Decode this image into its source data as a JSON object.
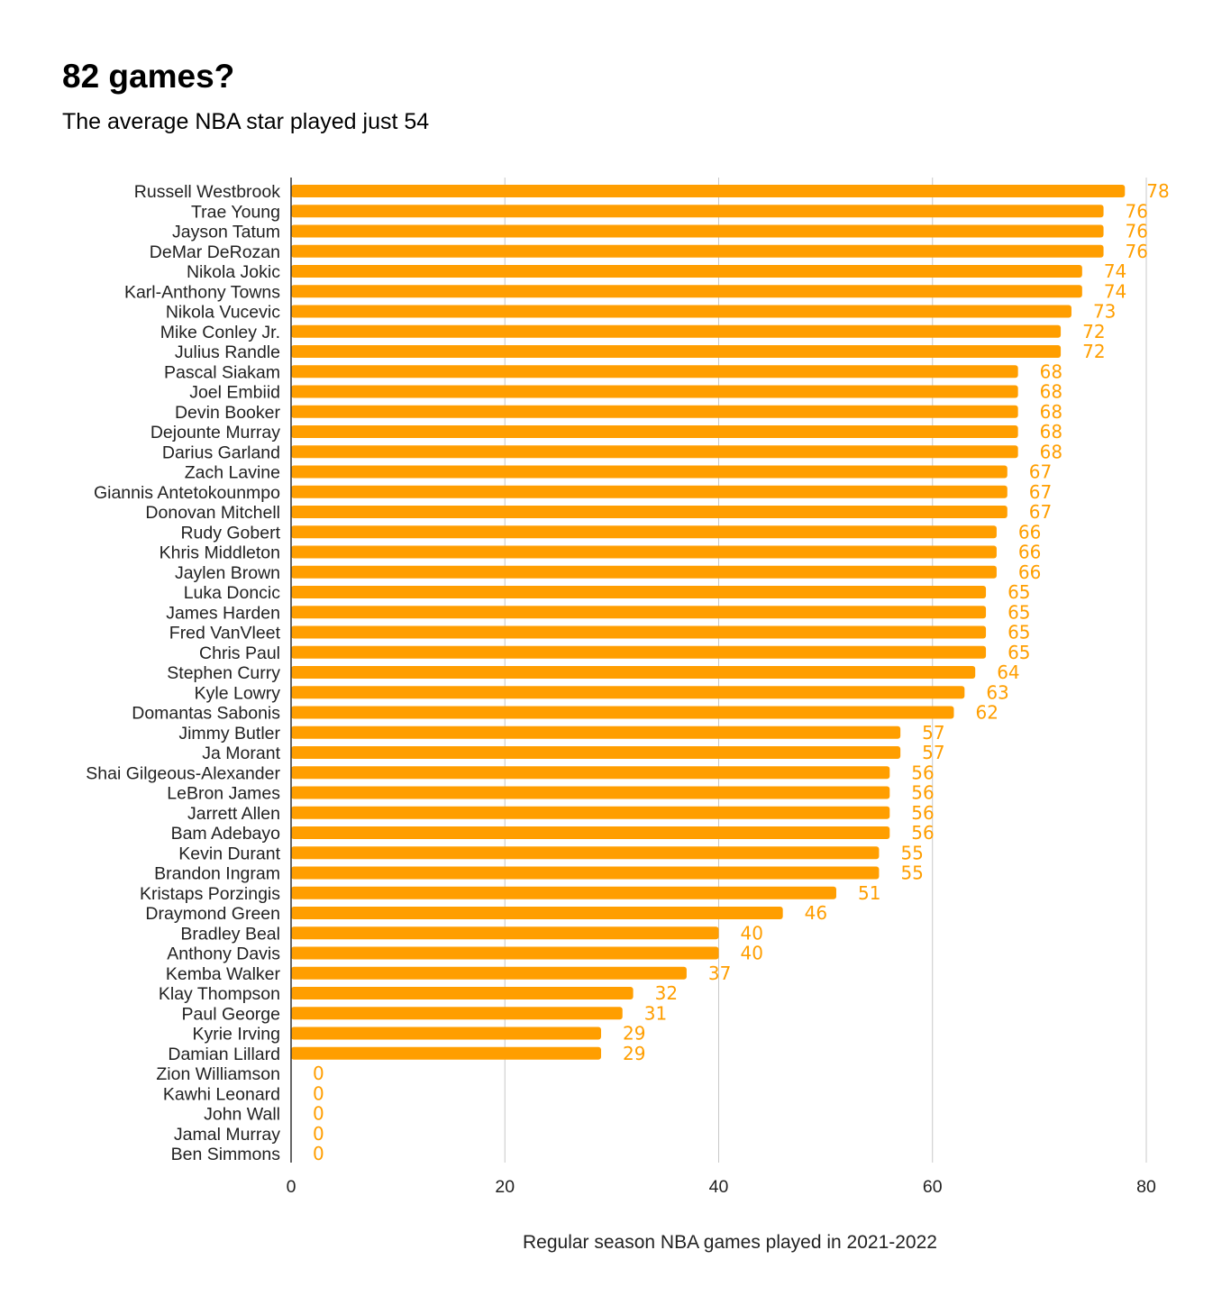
{
  "chart_data": {
    "type": "bar",
    "orientation": "horizontal",
    "title": "82 games?",
    "subtitle": "The average NBA star played just 54",
    "xlabel": "Regular season NBA games played in 2021-2022",
    "ylabel": "",
    "xlim": [
      0,
      80
    ],
    "x_ticks": [
      0,
      20,
      40,
      60,
      80
    ],
    "grid": true,
    "legend": "none",
    "data_labels": true,
    "bar_color": "#ff9e00",
    "label_color": "#ff9e00",
    "categories": [
      "Russell Westbrook",
      "Trae Young",
      "Jayson Tatum",
      "DeMar DeRozan",
      "Nikola Jokic",
      "Karl-Anthony Towns",
      "Nikola Vucevic",
      "Mike Conley Jr.",
      "Julius Randle",
      "Pascal Siakam",
      "Joel Embiid",
      "Devin Booker",
      "Dejounte Murray",
      "Darius Garland",
      "Zach Lavine",
      "Giannis Antetokounmpo",
      "Donovan Mitchell",
      "Rudy Gobert",
      "Khris Middleton",
      "Jaylen Brown",
      "Luka Doncic",
      "James Harden",
      "Fred VanVleet",
      "Chris Paul",
      "Stephen Curry",
      "Kyle Lowry",
      "Domantas Sabonis",
      "Jimmy Butler",
      "Ja Morant",
      "Shai Gilgeous-Alexander",
      "LeBron James",
      "Jarrett Allen",
      "Bam Adebayo",
      "Kevin Durant",
      "Brandon Ingram",
      "Kristaps Porzingis",
      "Draymond Green",
      "Bradley Beal",
      "Anthony Davis",
      "Kemba Walker",
      "Klay Thompson",
      "Paul George",
      "Kyrie Irving",
      "Damian Lillard",
      "Zion Williamson",
      "Kawhi Leonard",
      "John Wall",
      "Jamal Murray",
      "Ben Simmons"
    ],
    "values": [
      78,
      76,
      76,
      76,
      74,
      74,
      73,
      72,
      72,
      68,
      68,
      68,
      68,
      68,
      67,
      67,
      67,
      66,
      66,
      66,
      65,
      65,
      65,
      65,
      64,
      63,
      62,
      57,
      57,
      56,
      56,
      56,
      56,
      55,
      55,
      51,
      46,
      40,
      40,
      37,
      32,
      31,
      29,
      29,
      0,
      0,
      0,
      0,
      0
    ]
  }
}
